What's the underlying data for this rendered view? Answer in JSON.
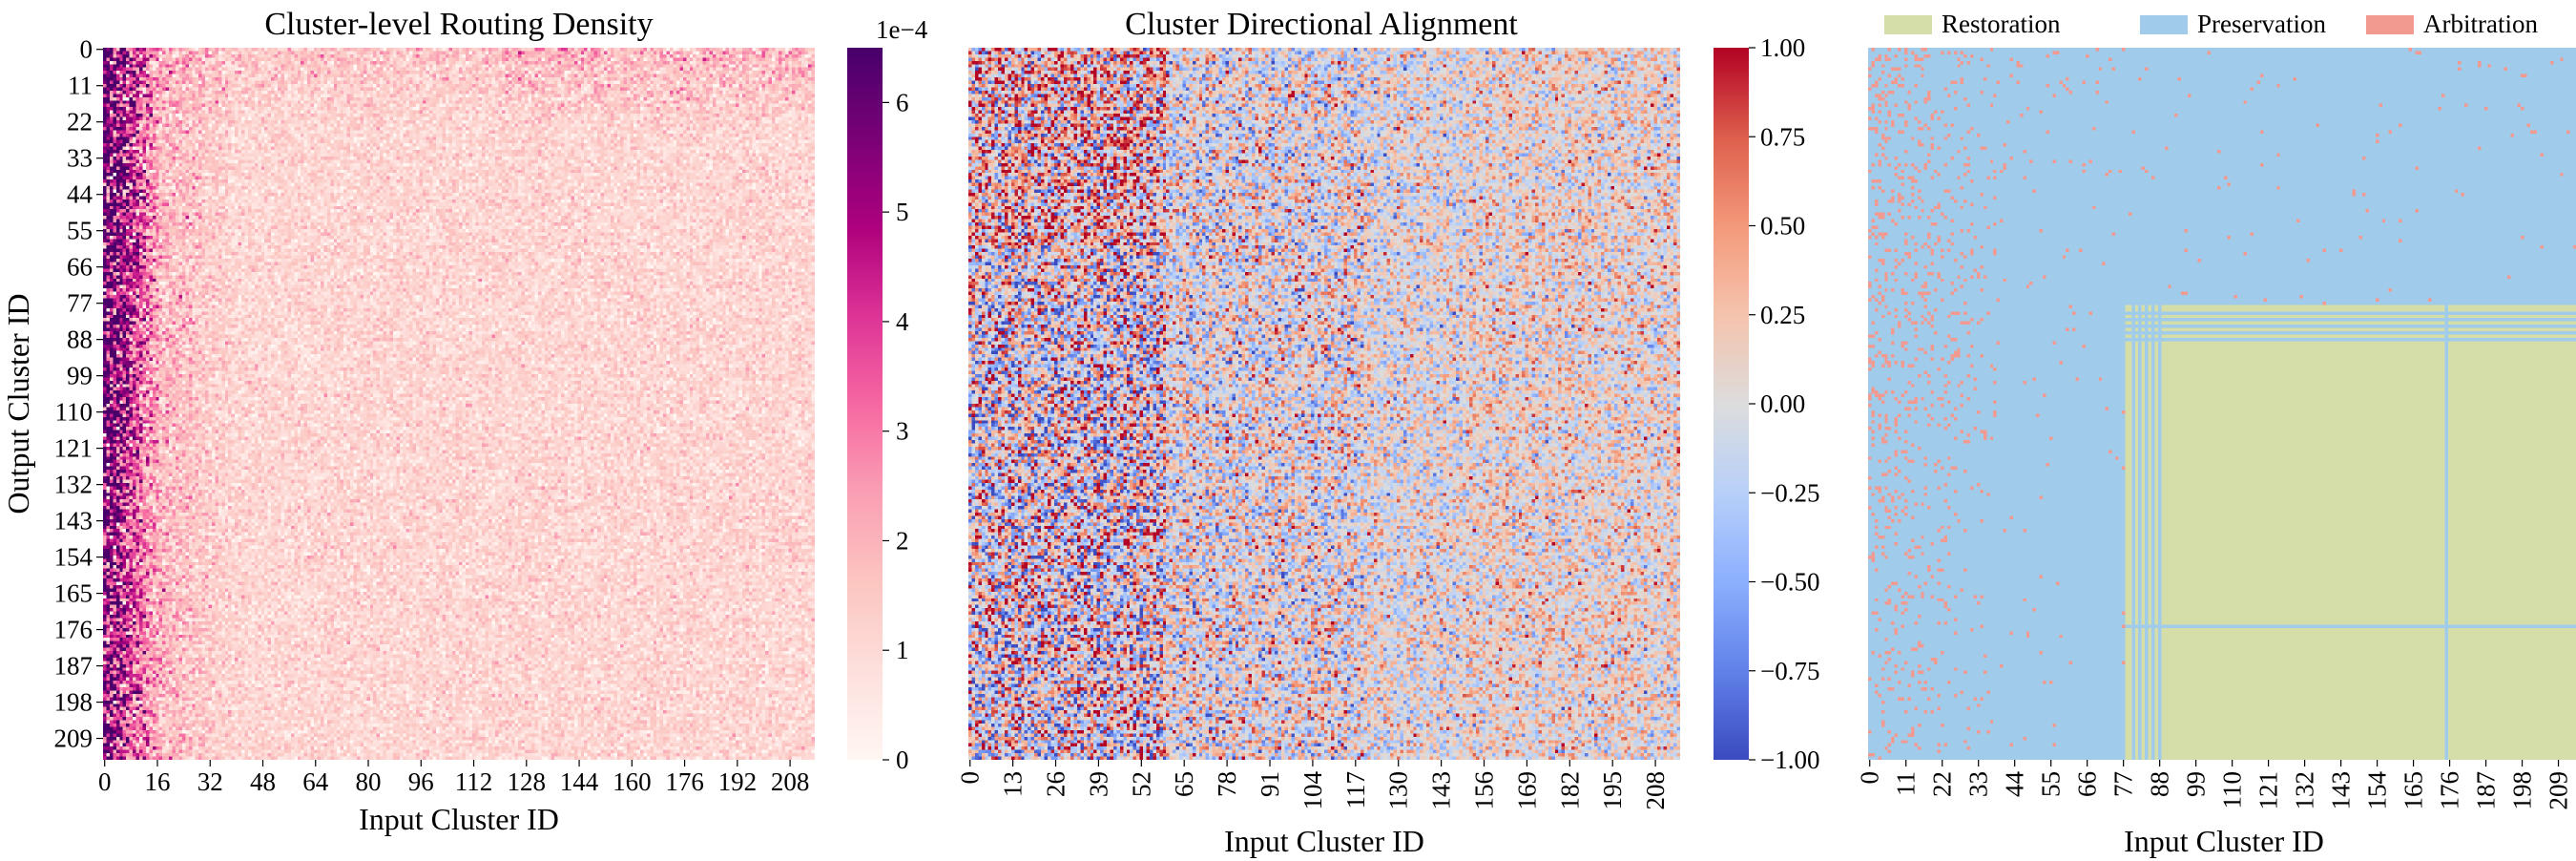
{
  "chart_data": [
    {
      "type": "heatmap",
      "title": "Cluster-level Routing Density",
      "xlabel": "Input Cluster ID",
      "ylabel": "Output Cluster ID",
      "n_clusters": 216,
      "x_ticks": [
        "0",
        "16",
        "32",
        "48",
        "64",
        "80",
        "96",
        "112",
        "128",
        "144",
        "160",
        "176",
        "192",
        "208"
      ],
      "y_ticks": [
        "0",
        "11",
        "22",
        "33",
        "44",
        "55",
        "66",
        "77",
        "88",
        "99",
        "110",
        "121",
        "132",
        "143",
        "154",
        "165",
        "176",
        "187",
        "198",
        "209"
      ],
      "colorbar": {
        "min": 0,
        "max": 0.00065,
        "ticks": [
          "0",
          "1",
          "2",
          "3",
          "4",
          "5",
          "6"
        ],
        "tick_values": [
          0,
          0.0001,
          0.0002,
          0.0003,
          0.0004,
          0.0005,
          0.0006
        ],
        "offset_label": "1e−4",
        "colormap": "RdPu"
      },
      "description_pattern": {
        "dense_input_columns": [
          0,
          16
        ],
        "peak_value": 0.00065,
        "background_value": 0.00011
      }
    },
    {
      "type": "heatmap",
      "title": "Cluster Directional Alignment",
      "xlabel": "Input Cluster ID",
      "ylabel": "",
      "n_clusters": 216,
      "x_ticks": [
        "0",
        "13",
        "26",
        "39",
        "52",
        "65",
        "78",
        "91",
        "104",
        "117",
        "130",
        "143",
        "156",
        "169",
        "182",
        "195",
        "208"
      ],
      "colorbar": {
        "min": -1.0,
        "max": 1.0,
        "ticks": [
          "1.00",
          "0.75",
          "0.50",
          "0.25",
          "0.00",
          "−0.25",
          "−0.50",
          "−0.75",
          "−1.00"
        ],
        "tick_values": [
          1.0,
          0.75,
          0.5,
          0.25,
          0.0,
          -0.25,
          -0.5,
          -0.75,
          -1.0
        ],
        "colormap": "coolwarm"
      }
    },
    {
      "type": "heatmap",
      "title": "",
      "xlabel": "Input Cluster ID",
      "ylabel": "",
      "n_clusters": 216,
      "x_ticks": [
        "0",
        "11",
        "22",
        "33",
        "44",
        "55",
        "66",
        "77",
        "88",
        "99",
        "110",
        "121",
        "132",
        "143",
        "154",
        "165",
        "176",
        "187",
        "198",
        "209"
      ],
      "legend": [
        {
          "label": "Restoration",
          "color": "#d5dea9"
        },
        {
          "label": "Preservation",
          "color": "#a0cbea"
        },
        {
          "label": "Arbitration",
          "color": "#f29a8f"
        }
      ],
      "legend_position": "top",
      "regions": {
        "restoration_block": {
          "rows": [
            78,
            216
          ],
          "cols": [
            78,
            216
          ]
        },
        "arbitration_scatter": {
          "rows": [
            0,
            216
          ],
          "cols": [
            0,
            40
          ]
        }
      }
    }
  ]
}
